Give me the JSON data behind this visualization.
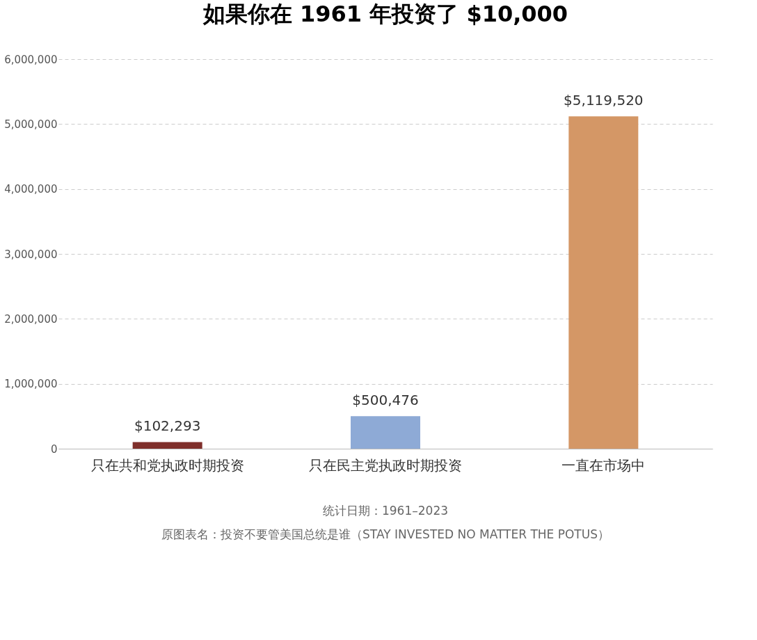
{
  "chart_data": {
    "type": "bar",
    "title": "如果你在 1961 年投资了 $10,000",
    "categories": [
      "只在共和党执政时期投资",
      "只在民主党执政时期投资",
      "一直在市场中"
    ],
    "values": [
      102293,
      500476,
      5119520
    ],
    "colors": [
      "#7f2f2b",
      "#8eaad6",
      "#d49766"
    ],
    "value_labels": [
      "$102,293",
      "$500,476",
      "$5,119,520"
    ],
    "ylim": [
      0,
      6000000
    ],
    "yticks": [
      {
        "value": 0,
        "label": "0"
      },
      {
        "value": 1000000,
        "label": "1,000,000"
      },
      {
        "value": 2000000,
        "label": "2,000,000"
      },
      {
        "value": 3000000,
        "label": "3,000,000"
      },
      {
        "value": 4000000,
        "label": "4,000,000"
      },
      {
        "value": 5000000,
        "label": "5,000,000"
      },
      {
        "value": 6000000,
        "label": "6,000,000"
      }
    ],
    "grid": "y",
    "annotations": [
      "统计日期：1961–2023",
      "原图表名：投资不要管美国总统是谁（STAY INVESTED NO MATTER THE POTUS）"
    ]
  }
}
